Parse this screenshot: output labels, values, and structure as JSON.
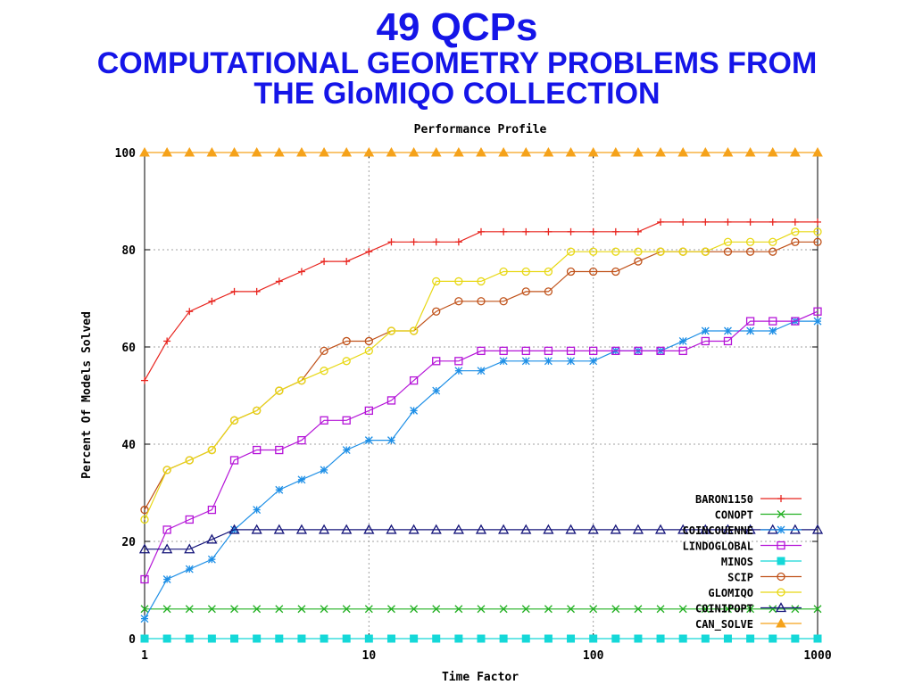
{
  "slide": {
    "title": "49 QCPs",
    "subtitle_line1": "COMPUTATIONAL GEOMETRY PROBLEMS FROM",
    "subtitle_line2": "THE GloMIQO COLLECTION"
  },
  "chart_data": {
    "type": "line",
    "title": "Performance Profile",
    "xlabel": "Time Factor",
    "ylabel": "Percent Of Models Solved",
    "xscale": "log",
    "xlim": [
      1,
      1000
    ],
    "ylim": [
      0,
      100
    ],
    "xticks": [
      1,
      10,
      100,
      1000
    ],
    "xtick_labels": [
      "1",
      "10",
      "100",
      "1000"
    ],
    "yticks": [
      0,
      20,
      40,
      60,
      80,
      100
    ],
    "ytick_labels": [
      "0",
      "20",
      "40",
      "60",
      "80",
      "100"
    ],
    "grid": true,
    "legend_position": "bottom-right",
    "x": [
      1,
      1.259,
      1.585,
      1.995,
      2.512,
      3.162,
      3.981,
      5.012,
      6.31,
      7.943,
      10,
      12.59,
      15.85,
      19.95,
      25.12,
      31.62,
      39.81,
      50.12,
      63.1,
      79.43,
      100,
      125.9,
      158.5,
      199.5,
      251.2,
      316.2,
      398.1,
      501.2,
      631,
      794.3,
      1000
    ],
    "series": [
      {
        "name": "BARON1150",
        "color": "#e8251f",
        "marker": "plus",
        "values": [
          53.1,
          61.2,
          67.3,
          69.4,
          71.4,
          71.4,
          73.5,
          75.5,
          77.6,
          77.6,
          79.6,
          81.6,
          81.6,
          81.6,
          81.6,
          83.7,
          83.7,
          83.7,
          83.7,
          83.7,
          83.7,
          83.7,
          83.7,
          85.7,
          85.7,
          85.7,
          85.7,
          85.7,
          85.7,
          85.7,
          85.7
        ]
      },
      {
        "name": "CONOPT",
        "color": "#22b022",
        "marker": "x",
        "values": [
          6.1,
          6.1,
          6.1,
          6.1,
          6.1,
          6.1,
          6.1,
          6.1,
          6.1,
          6.1,
          6.1,
          6.1,
          6.1,
          6.1,
          6.1,
          6.1,
          6.1,
          6.1,
          6.1,
          6.1,
          6.1,
          6.1,
          6.1,
          6.1,
          6.1,
          6.1,
          6.1,
          6.1,
          6.1,
          6.1,
          6.1
        ]
      },
      {
        "name": "COINCOUENNE",
        "color": "#1e8fe6",
        "marker": "star",
        "values": [
          4.1,
          12.2,
          14.3,
          16.3,
          22.4,
          26.5,
          30.6,
          32.7,
          34.7,
          38.8,
          40.8,
          40.8,
          46.9,
          51.0,
          55.1,
          55.1,
          57.1,
          57.1,
          57.1,
          57.1,
          57.1,
          59.2,
          59.2,
          59.2,
          61.2,
          63.3,
          63.3,
          63.3,
          63.3,
          65.3,
          65.3
        ]
      },
      {
        "name": "LINDOGLOBAL",
        "color": "#b515d8",
        "marker": "square",
        "values": [
          12.2,
          22.4,
          24.5,
          26.5,
          36.7,
          38.8,
          38.8,
          40.8,
          44.9,
          44.9,
          46.9,
          49.0,
          53.1,
          57.1,
          57.1,
          59.2,
          59.2,
          59.2,
          59.2,
          59.2,
          59.2,
          59.2,
          59.2,
          59.2,
          59.2,
          61.2,
          61.2,
          65.3,
          65.3,
          65.3,
          67.3
        ]
      },
      {
        "name": "MINOS",
        "color": "#15d8d8",
        "marker": "filled-square",
        "values": [
          0,
          0,
          0,
          0,
          0,
          0,
          0,
          0,
          0,
          0,
          0,
          0,
          0,
          0,
          0,
          0,
          0,
          0,
          0,
          0,
          0,
          0,
          0,
          0,
          0,
          0,
          0,
          0,
          0,
          0,
          0
        ]
      },
      {
        "name": "SCIP",
        "color": "#c0521a",
        "marker": "circle",
        "values": [
          26.5,
          34.7,
          36.7,
          38.8,
          44.9,
          46.9,
          51.0,
          53.1,
          59.2,
          61.2,
          61.2,
          63.3,
          63.3,
          67.3,
          69.4,
          69.4,
          69.4,
          71.4,
          71.4,
          75.5,
          75.5,
          75.5,
          77.6,
          79.6,
          79.6,
          79.6,
          79.6,
          79.6,
          79.6,
          81.6,
          81.6
        ]
      },
      {
        "name": "GLOMIQO",
        "color": "#e8d815",
        "marker": "circle",
        "values": [
          24.5,
          34.7,
          36.7,
          38.8,
          44.9,
          46.9,
          51.0,
          53.1,
          55.1,
          57.1,
          59.2,
          63.3,
          63.3,
          73.5,
          73.5,
          73.5,
          75.5,
          75.5,
          75.5,
          79.6,
          79.6,
          79.6,
          79.6,
          79.6,
          79.6,
          79.6,
          81.6,
          81.6,
          81.6,
          83.7,
          83.7
        ]
      },
      {
        "name": "COINIPOPT",
        "color": "#15157a",
        "marker": "triangle",
        "values": [
          18.4,
          18.4,
          18.4,
          20.4,
          22.4,
          22.4,
          22.4,
          22.4,
          22.4,
          22.4,
          22.4,
          22.4,
          22.4,
          22.4,
          22.4,
          22.4,
          22.4,
          22.4,
          22.4,
          22.4,
          22.4,
          22.4,
          22.4,
          22.4,
          22.4,
          22.4,
          22.4,
          22.4,
          22.4,
          22.4,
          22.4
        ]
      },
      {
        "name": "CAN_SOLVE",
        "color": "#f5a21a",
        "marker": "filled-triangle",
        "values": [
          100,
          100,
          100,
          100,
          100,
          100,
          100,
          100,
          100,
          100,
          100,
          100,
          100,
          100,
          100,
          100,
          100,
          100,
          100,
          100,
          100,
          100,
          100,
          100,
          100,
          100,
          100,
          100,
          100,
          100,
          100
        ]
      }
    ]
  }
}
